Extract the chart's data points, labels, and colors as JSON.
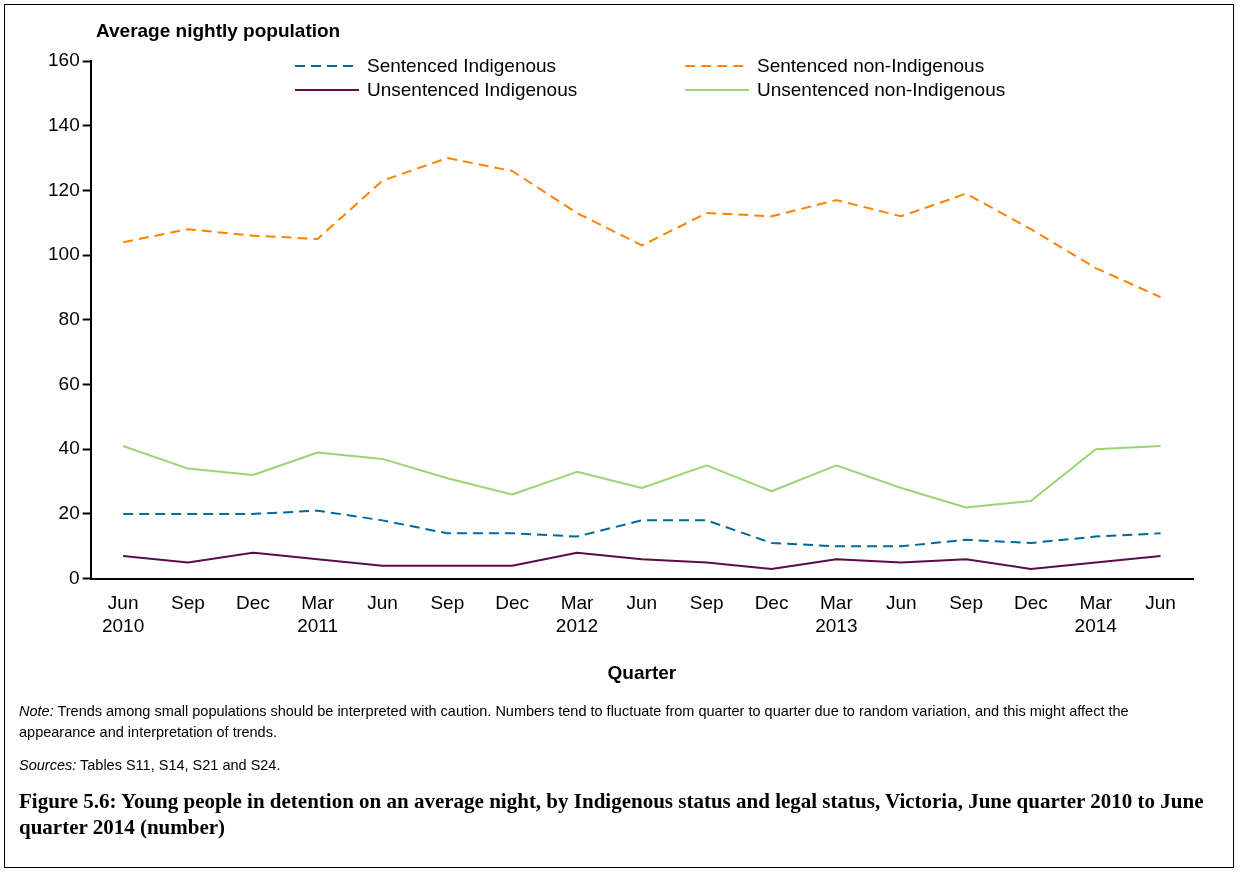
{
  "chart_data": {
    "type": "line",
    "title": "Figure 5.6: Young people in detention on an average night, by Indigenous status and legal status, Victoria, June quarter 2010 to June quarter 2014 (number)",
    "xlabel": "Quarter",
    "ylabel": "Average nightly population",
    "categories": [
      "Jun\n2010",
      "Sep",
      "Dec",
      "Mar\n2011",
      "Jun",
      "Sep",
      "Dec",
      "Mar\n2012",
      "Jun",
      "Sep",
      "Dec",
      "Mar\n2013",
      "Jun",
      "Sep",
      "Dec",
      "Mar\n2014",
      "Jun"
    ],
    "series": [
      {
        "name": "Sentenced Indigenous",
        "color": "#00689d",
        "line_style": "dashed",
        "values": [
          20,
          20,
          20,
          21,
          18,
          14,
          14,
          13,
          18,
          18,
          11,
          10,
          10,
          12,
          11,
          13,
          14
        ]
      },
      {
        "name": "Sentenced non-Indigenous",
        "color": "#ff8200",
        "line_style": "dashed",
        "values": [
          104,
          108,
          106,
          105,
          123,
          130,
          126,
          113,
          103,
          113,
          112,
          117,
          112,
          119,
          108,
          96,
          87
        ]
      },
      {
        "name": "Unsentenced Indigenous",
        "color": "#5b0c4c",
        "line_style": "solid",
        "values": [
          7,
          5,
          8,
          6,
          4,
          4,
          4,
          8,
          6,
          5,
          3,
          6,
          5,
          6,
          3,
          5,
          7
        ]
      },
      {
        "name": "Unsentenced non-Indigenous",
        "color": "#99d572",
        "line_style": "solid",
        "values": [
          41,
          34,
          32,
          39,
          37,
          31,
          26,
          33,
          28,
          35,
          27,
          35,
          28,
          22,
          24,
          40,
          41
        ]
      }
    ],
    "ylim": [
      0,
      160
    ],
    "yticks": [
      0,
      20,
      40,
      60,
      80,
      100,
      120,
      140,
      160
    ],
    "grid": false,
    "legend": "top",
    "marker": "none",
    "annotations": [
      "Note: Trends among small populations should be interpreted with caution. Numbers tend to fluctuate from quarter to quarter due to random variation, and this might affect the appearance and interpretation of trends.",
      "Sources: Tables S11, S14, S21 and S24."
    ]
  }
}
